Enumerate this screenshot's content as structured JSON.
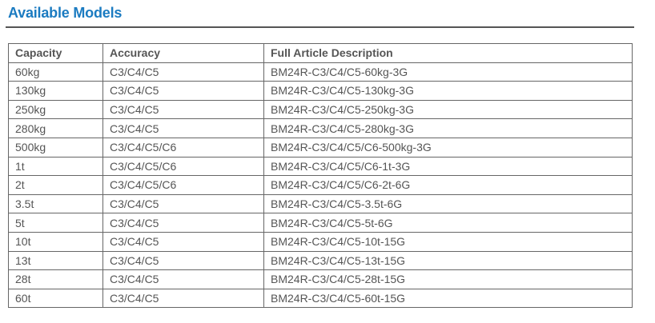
{
  "title": "Available Models",
  "table": {
    "headers": [
      "Capacity",
      "Accuracy",
      "Full Article Description"
    ],
    "rows": [
      [
        "60kg",
        "C3/C4/C5",
        "BM24R-C3/C4/C5-60kg-3G"
      ],
      [
        "130kg",
        "C3/C4/C5",
        "BM24R-C3/C4/C5-130kg-3G"
      ],
      [
        "250kg",
        "C3/C4/C5",
        "BM24R-C3/C4/C5-250kg-3G"
      ],
      [
        "280kg",
        "C3/C4/C5",
        "BM24R-C3/C4/C5-280kg-3G"
      ],
      [
        "500kg",
        "C3/C4/C5/C6",
        "BM24R-C3/C4/C5/C6-500kg-3G"
      ],
      [
        "1t",
        "C3/C4/C5/C6",
        "BM24R-C3/C4/C5/C6-1t-3G"
      ],
      [
        "2t",
        "C3/C4/C5/C6",
        "BM24R-C3/C4/C5/C6-2t-6G"
      ],
      [
        "3.5t",
        "C3/C4/C5",
        "BM24R-C3/C4/C5-3.5t-6G"
      ],
      [
        "5t",
        "C3/C4/C5",
        "BM24R-C3/C4/C5-5t-6G"
      ],
      [
        "10t",
        "C3/C4/C5",
        "BM24R-C3/C4/C5-10t-15G"
      ],
      [
        "13t",
        "C3/C4/C5",
        "BM24R-C3/C4/C5-13t-15G"
      ],
      [
        "28t",
        "C3/C4/C5",
        "BM24R-C3/C4/C5-28t-15G"
      ],
      [
        "60t",
        "C3/C4/C5",
        "BM24R-C3/C4/C5-60t-15G"
      ]
    ]
  },
  "colors": {
    "title": "#1b7bc1",
    "text": "#555555",
    "border": "#666666"
  }
}
